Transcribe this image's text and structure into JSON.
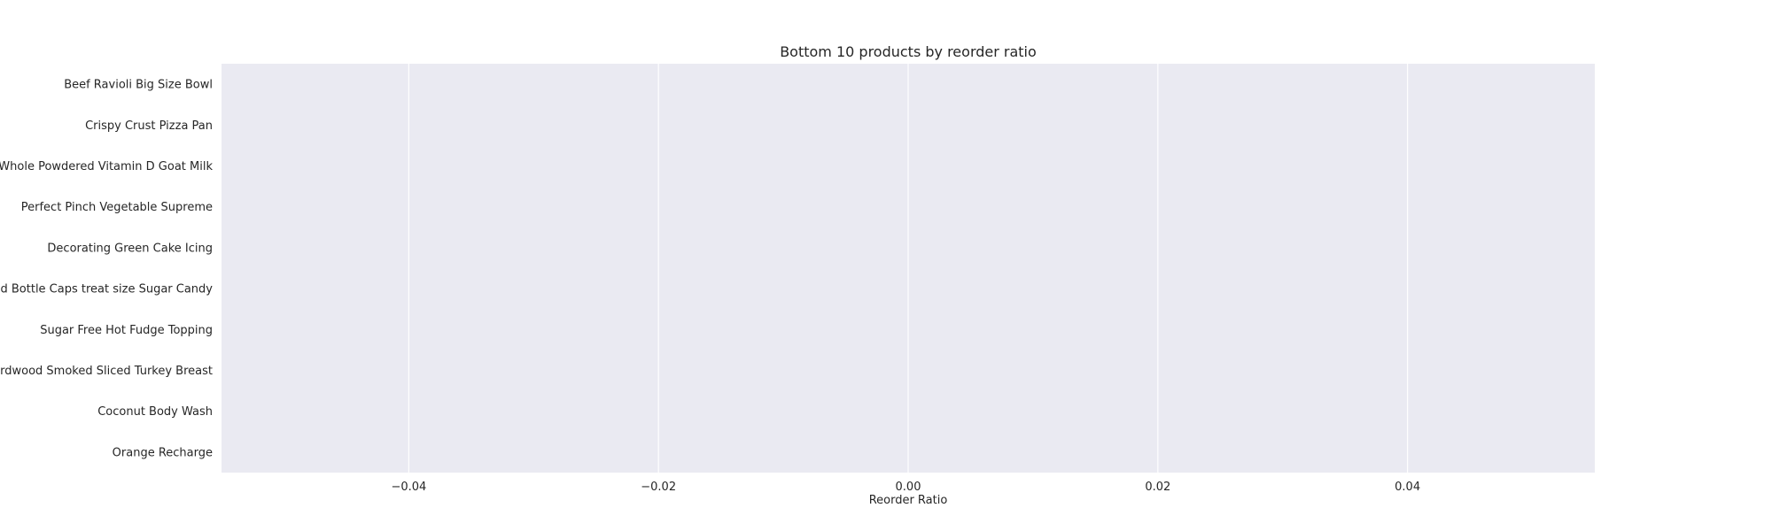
{
  "chart_data": {
    "type": "bar",
    "orientation": "horizontal",
    "title": "Bottom 10 products by reorder ratio",
    "xlabel": "Reorder Ratio",
    "ylabel": "",
    "categories": [
      "Beef Ravioli Big Size Bowl",
      "Crispy Crust Pizza Pan",
      "Whole Powdered Vitamin D Goat Milk",
      "Perfect Pinch Vegetable Supreme",
      "Decorating Green Cake Icing",
      "Sixlets, Dots and Bottle Caps treat size Sugar Candy",
      "Sugar Free Hot Fudge Topping",
      "Hardwood Smoked Sliced Turkey Breast",
      "Coconut Body Wash",
      "Orange Recharge"
    ],
    "values": [
      0,
      0,
      0,
      0,
      0,
      0,
      0,
      0,
      0,
      0
    ],
    "xlim": [
      -0.055,
      0.055
    ],
    "xticks": [
      -0.04,
      -0.02,
      0.0,
      0.02,
      0.04
    ],
    "xtick_labels": [
      "−0.04",
      "−0.02",
      "0.00",
      "0.02",
      "0.04"
    ],
    "grid": true,
    "grid_axis": "x",
    "colors": {
      "plot_background": "#eaeaf2",
      "grid": "#ffffff",
      "text": "#262626",
      "bar": "#4c72b0"
    }
  }
}
